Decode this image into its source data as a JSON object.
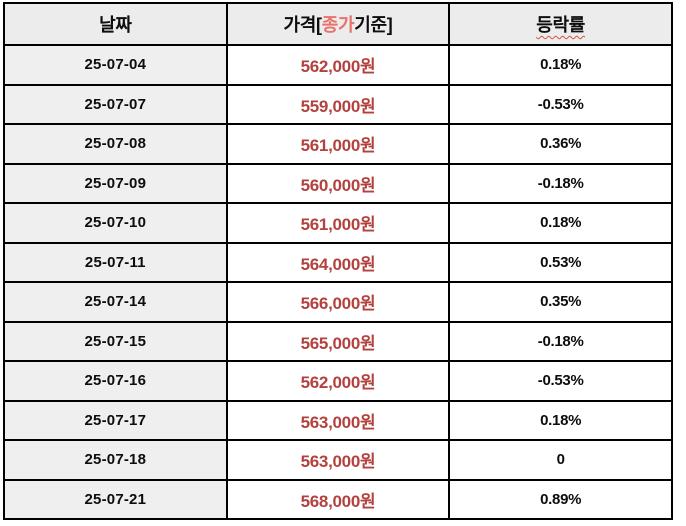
{
  "colors": {
    "price_text": "#b3423e",
    "header_highlight": "#e8736c",
    "squiggle": "#d3543a",
    "header_bg": "#ececec",
    "date_column_bg": "#efefef",
    "border": "#000000"
  },
  "table": {
    "header": {
      "date": "날짜",
      "price_prefix": "가격[",
      "price_highlight": "종가",
      "price_suffix": "기준]",
      "change": "등락률"
    },
    "rows": [
      {
        "date": "25-07-04",
        "price": "562,000원",
        "change": "0.18%"
      },
      {
        "date": "25-07-07",
        "price": "559,000원",
        "change": "-0.53%"
      },
      {
        "date": "25-07-08",
        "price": "561,000원",
        "change": "0.36%"
      },
      {
        "date": "25-07-09",
        "price": "560,000원",
        "change": "-0.18%"
      },
      {
        "date": "25-07-10",
        "price": "561,000원",
        "change": "0.18%"
      },
      {
        "date": "25-07-11",
        "price": "564,000원",
        "change": "0.53%"
      },
      {
        "date": "25-07-14",
        "price": "566,000원",
        "change": "0.35%"
      },
      {
        "date": "25-07-15",
        "price": "565,000원",
        "change": "-0.18%"
      },
      {
        "date": "25-07-16",
        "price": "562,000원",
        "change": "-0.53%"
      },
      {
        "date": "25-07-17",
        "price": "563,000원",
        "change": "0.18%"
      },
      {
        "date": "25-07-18",
        "price": "563,000원",
        "change": "0"
      },
      {
        "date": "25-07-21",
        "price": "568,000원",
        "change": "0.89%"
      }
    ]
  },
  "chart_data": {
    "type": "table",
    "columns": [
      "날짜",
      "가격[종가기준]",
      "등락률"
    ],
    "dates": [
      "25-07-04",
      "25-07-07",
      "25-07-08",
      "25-07-09",
      "25-07-10",
      "25-07-11",
      "25-07-14",
      "25-07-15",
      "25-07-16",
      "25-07-17",
      "25-07-18",
      "25-07-21"
    ],
    "prices_krw": [
      562000,
      559000,
      561000,
      560000,
      561000,
      564000,
      566000,
      565000,
      562000,
      563000,
      563000,
      568000
    ],
    "change_pct": [
      0.18,
      -0.53,
      0.36,
      -0.18,
      0.18,
      0.53,
      0.35,
      -0.18,
      -0.53,
      0.18,
      0,
      0.89
    ]
  }
}
